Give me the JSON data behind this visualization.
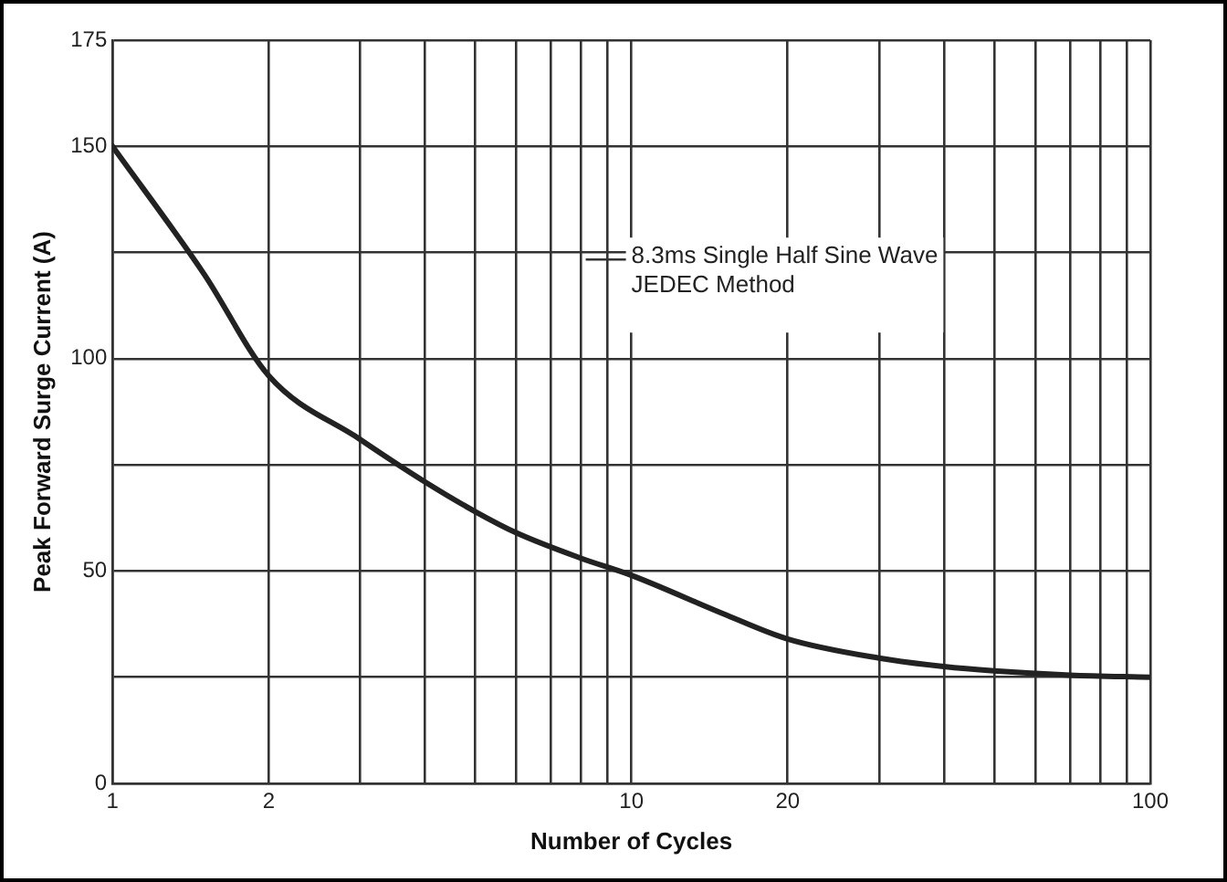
{
  "chart_data": {
    "type": "line",
    "xlabel": "Number of Cycles",
    "ylabel": "Peak Forward Surge Current (A)",
    "annotations": [
      "8.3ms Single Half Sine Wave\nJEDEC Method"
    ],
    "log": "x",
    "grid": true,
    "legend": false,
    "marker": "none",
    "line_style": "solid",
    "xlim": [
      1,
      100
    ],
    "ylim": [
      0,
      175
    ],
    "xticks": [
      1,
      2,
      {
        "value": 3,
        "label": null
      },
      {
        "value": 4,
        "label": null
      },
      {
        "value": 5,
        "label": null
      },
      {
        "value": 6,
        "label": null
      },
      {
        "value": 7,
        "label": null
      },
      {
        "value": 8,
        "label": null
      },
      {
        "value": 9,
        "label": null
      },
      10,
      20,
      {
        "value": 30,
        "label": null
      },
      {
        "value": 40,
        "label": null
      },
      {
        "value": 50,
        "label": null
      },
      {
        "value": 60,
        "label": null
      },
      {
        "value": 70,
        "label": null
      },
      {
        "value": 80,
        "label": null
      },
      {
        "value": 90,
        "label": null
      },
      100
    ],
    "yticks": [
      0,
      {
        "value": 25,
        "label": null
      },
      50,
      {
        "value": 75,
        "label": null
      },
      100,
      {
        "value": 125,
        "label": null
      },
      150,
      175
    ],
    "series": [
      {
        "color": "#222222",
        "x": [
          1,
          1.5,
          2,
          3,
          4,
          5,
          6,
          8,
          10,
          15,
          20,
          30,
          40,
          50,
          70,
          100
        ],
        "values": [
          150,
          120,
          96,
          81,
          71,
          64,
          59,
          53,
          49,
          40,
          34,
          29.5,
          27.5,
          26.5,
          25.5,
          25
        ]
      }
    ]
  }
}
